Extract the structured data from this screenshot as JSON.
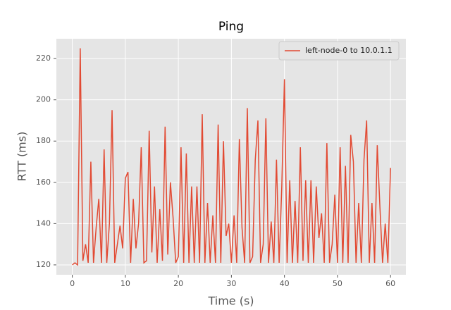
{
  "chart_data": {
    "type": "line",
    "title": "Ping",
    "xlabel": "Time (s)",
    "ylabel": "RTT (ms)",
    "x": [
      0,
      0.5,
      1,
      1.5,
      2,
      2.5,
      3,
      3.5,
      4,
      4.5,
      5,
      5.5,
      6,
      6.5,
      7,
      7.5,
      8,
      8.5,
      9,
      9.5,
      10,
      10.5,
      11,
      11.5,
      12,
      12.5,
      13,
      13.5,
      14,
      14.5,
      15,
      15.5,
      16,
      16.5,
      17,
      17.5,
      18,
      18.5,
      19,
      19.5,
      20,
      20.5,
      21,
      21.5,
      22,
      22.5,
      23,
      23.5,
      24,
      24.5,
      25,
      25.5,
      26,
      26.5,
      27,
      27.5,
      28,
      28.5,
      29,
      29.5,
      30,
      30.5,
      31,
      31.5,
      32,
      32.5,
      33,
      33.5,
      34,
      34.5,
      35,
      35.5,
      36,
      36.5,
      37,
      37.5,
      38,
      38.5,
      39,
      39.5,
      40,
      40.5,
      41,
      41.5,
      42,
      42.5,
      43,
      43.5,
      44,
      44.5,
      45,
      45.5,
      46,
      46.5,
      47,
      47.5,
      48,
      48.5,
      49,
      49.5,
      50,
      50.5,
      51,
      51.5,
      52,
      52.5,
      53,
      53.5,
      54,
      54.5,
      55,
      55.5,
      56,
      56.5,
      57,
      57.5,
      58,
      58.5,
      59,
      59.5,
      60
    ],
    "series": [
      {
        "name": "left-node-0 to 10.0.1.1",
        "color": "#E24A33",
        "values": [
          120,
          121,
          120,
          225,
          122,
          130,
          121,
          170,
          121,
          138,
          152,
          121,
          176,
          121,
          140,
          195,
          121,
          130,
          139,
          128,
          162,
          165,
          121,
          152,
          128,
          140,
          177,
          121,
          122,
          185,
          126,
          158,
          121,
          147,
          122,
          187,
          125,
          160,
          143,
          121,
          124,
          177,
          121,
          174,
          121,
          158,
          121,
          158,
          121,
          193,
          121,
          150,
          121,
          144,
          121,
          188,
          121,
          180,
          134,
          140,
          121,
          144,
          121,
          181,
          138,
          121,
          196,
          121,
          124,
          171,
          190,
          121,
          130,
          191,
          121,
          141,
          121,
          171,
          121,
          158,
          210,
          121,
          161,
          121,
          151,
          121,
          177,
          122,
          161,
          121,
          161,
          121,
          158,
          133,
          145,
          121,
          179,
          121,
          130,
          154,
          121,
          177,
          121,
          168,
          121,
          183,
          170,
          121,
          150,
          121,
          171,
          190,
          121,
          150,
          121,
          178,
          148,
          121,
          140,
          121,
          167
        ]
      }
    ],
    "xlim": [
      -3,
      62.9
    ],
    "ylim": [
      115.2,
      229.6
    ],
    "xticks": [
      0,
      10,
      20,
      30,
      40,
      50,
      60
    ],
    "yticks": [
      120,
      140,
      160,
      180,
      200,
      220
    ],
    "grid": true,
    "legend": "upper right"
  }
}
